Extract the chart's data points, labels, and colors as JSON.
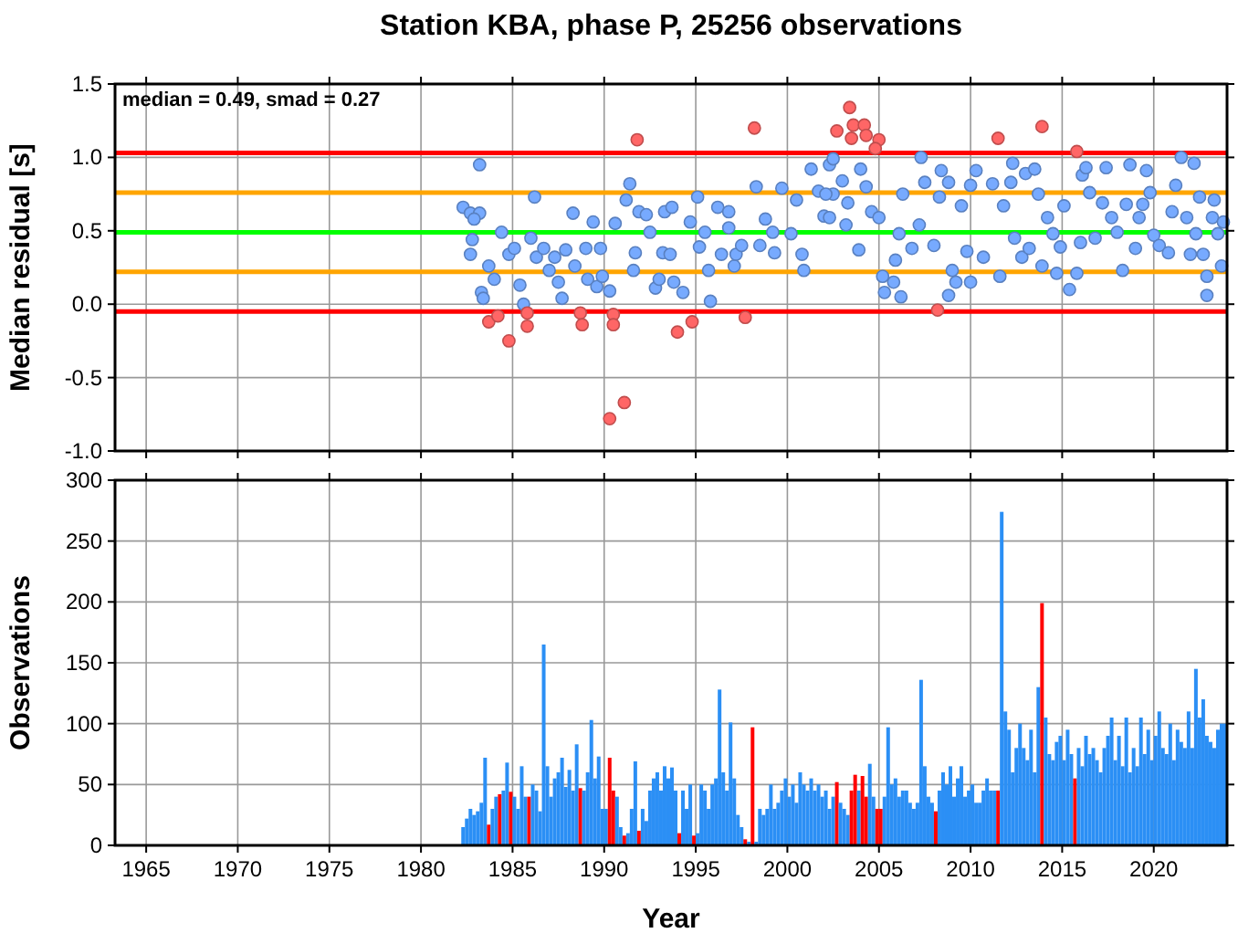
{
  "chart_data": [
    {
      "type": "scatter",
      "title": "Station KBA, phase P, 25256 observations",
      "ylabel": "Median residual [s]",
      "xlim": [
        1963.3,
        2024
      ],
      "xticks": [
        1965,
        1970,
        1975,
        1980,
        1985,
        1990,
        1995,
        2000,
        2005,
        2010,
        2015,
        2020
      ],
      "ylim": [
        -1,
        1.5
      ],
      "yticks": [
        {
          "value": -1,
          "label": "-1.0"
        },
        {
          "value": -0.5,
          "label": "-0.5"
        },
        {
          "value": 0,
          "label": "0.0"
        },
        {
          "value": 0.5,
          "label": "0.5"
        },
        {
          "value": 1,
          "label": "1.0"
        },
        {
          "value": 1.5,
          "label": "1.5"
        }
      ],
      "grid": true,
      "tick_labels": "y",
      "marker": "circle",
      "annotations": [
        "median = 0.49, smad = 0.27"
      ],
      "ref_lines": [
        {
          "axis": "y",
          "value": 1.03,
          "color": "#ff0000"
        },
        {
          "axis": "y",
          "value": 0.76,
          "color": "#ffa500"
        },
        {
          "axis": "y",
          "value": 0.49,
          "color": "#00ff00"
        },
        {
          "axis": "y",
          "value": 0.22,
          "color": "#ffa500"
        },
        {
          "axis": "y",
          "value": -0.05,
          "color": "#ff0000"
        }
      ],
      "series": [
        {
          "color": "#77aaff",
          "x": [
            1983.2,
            1982.3,
            1982.7,
            1983.2,
            1982.9,
            1982.8,
            1982.7,
            1983.3,
            1983.4,
            1983.7,
            1984.0,
            1984.4,
            1984.8,
            1985.1,
            1985.4,
            1985.6,
            1986.0,
            1986.2,
            1986.3,
            1986.7,
            1987.0,
            1987.3,
            1987.5,
            1987.7,
            1987.9,
            1988.3,
            1988.4,
            1989.0,
            1989.1,
            1989.4,
            1989.6,
            1989.8,
            1989.9,
            1990.3,
            1990.6,
            1991.2,
            1991.4,
            1991.6,
            1991.7,
            1991.9,
            1992.3,
            1992.5,
            1992.8,
            1993.0,
            1993.2,
            1993.3,
            1993.7,
            1993.6,
            1993.8,
            1994.3,
            1994.7,
            1995.1,
            1995.2,
            1995.5,
            1995.7,
            1995.8,
            1996.2,
            1996.4,
            1996.8,
            1996.8,
            1997.1,
            1997.2,
            1997.5,
            1998.3,
            1998.5,
            1998.8,
            1999.2,
            1999.3,
            1999.7,
            2000.2,
            2000.8,
            2000.9,
            2000.5,
            2001.3,
            2001.7,
            2002.0,
            2002.3,
            2002.5,
            2002.5,
            2002.1,
            2002.3,
            2003.0,
            2003.3,
            2003.2,
            2003.9,
            2004.0,
            2004.3,
            2004.6,
            2005.0,
            2005.2,
            2005.3,
            2005.8,
            2005.9,
            2006.2,
            2006.3,
            2006.1,
            2006.8,
            2007.2,
            2007.3,
            2007.5,
            2008.0,
            2008.3,
            2008.4,
            2008.8,
            2008.8,
            2009.0,
            2009.2,
            2009.5,
            2009.8,
            2010.0,
            2010.0,
            2010.3,
            2010.7,
            2011.2,
            2011.6,
            2011.8,
            2012.3,
            2012.2,
            2012.4,
            2012.8,
            2013.2,
            2013.0,
            2013.5,
            2013.7,
            2013.9,
            2014.2,
            2014.5,
            2014.7,
            2014.9,
            2015.1,
            2015.4,
            2015.8,
            2016.0,
            2016.1,
            2016.3,
            2016.5,
            2016.8,
            2017.2,
            2017.4,
            2017.7,
            2018.0,
            2018.3,
            2018.5,
            2018.7,
            2019.0,
            2019.2,
            2019.4,
            2019.6,
            2019.8,
            2020.0,
            2020.3,
            2020.8,
            2021.0,
            2021.2,
            2021.5,
            2021.8,
            2022.0,
            2022.2,
            2022.3,
            2022.5,
            2022.7,
            2022.9,
            2022.9,
            2023.2,
            2023.3,
            2023.5,
            2023.7,
            2023.8
          ],
          "values": [
            0.95,
            0.66,
            0.62,
            0.62,
            0.58,
            0.44,
            0.34,
            0.08,
            0.04,
            0.26,
            0.17,
            0.49,
            0.34,
            0.38,
            0.13,
            0.0,
            0.45,
            0.73,
            0.32,
            0.38,
            0.23,
            0.32,
            0.15,
            0.04,
            0.37,
            0.62,
            0.26,
            0.38,
            0.17,
            0.56,
            0.12,
            0.38,
            0.19,
            0.09,
            0.55,
            0.71,
            0.82,
            0.23,
            0.35,
            0.63,
            0.61,
            0.49,
            0.11,
            0.17,
            0.35,
            0.63,
            0.66,
            0.34,
            0.15,
            0.08,
            0.56,
            0.73,
            0.39,
            0.49,
            0.23,
            0.02,
            0.66,
            0.34,
            0.63,
            0.52,
            0.26,
            0.34,
            0.4,
            0.8,
            0.4,
            0.58,
            0.49,
            0.35,
            0.79,
            0.48,
            0.34,
            0.23,
            0.71,
            0.92,
            0.77,
            0.6,
            0.95,
            0.75,
            0.99,
            0.75,
            0.59,
            0.84,
            0.69,
            0.54,
            0.37,
            0.92,
            0.8,
            0.63,
            0.59,
            0.19,
            0.08,
            0.15,
            0.3,
            0.05,
            0.75,
            0.48,
            0.38,
            0.54,
            1.0,
            0.83,
            0.4,
            0.73,
            0.91,
            0.83,
            0.06,
            0.23,
            0.15,
            0.67,
            0.36,
            0.15,
            0.81,
            0.91,
            0.32,
            0.82,
            0.19,
            0.67,
            0.96,
            0.83,
            0.45,
            0.32,
            0.38,
            0.89,
            0.92,
            0.75,
            0.26,
            0.59,
            0.48,
            0.21,
            0.39,
            0.67,
            0.1,
            0.21,
            0.42,
            0.88,
            0.93,
            0.76,
            0.45,
            0.69,
            0.93,
            0.59,
            0.49,
            0.23,
            0.68,
            0.95,
            0.38,
            0.59,
            0.68,
            0.91,
            0.76,
            0.47,
            0.4,
            0.35,
            0.63,
            0.81,
            1.0,
            0.59,
            0.34,
            0.96,
            0.48,
            0.73,
            0.34,
            0.19,
            0.06,
            0.59,
            0.71,
            0.48,
            0.26,
            0.56
          ]
        },
        {
          "color": "#ff6666",
          "x": [
            1991.8,
            1998.2,
            2002.7,
            1983.7,
            1984.2,
            1984.8,
            1985.8,
            1985.8,
            1988.7,
            1988.8,
            1990.5,
            1990.5,
            1990.3,
            1991.1,
            1994.0,
            1994.8,
            1997.7,
            2003.4,
            2003.6,
            2004.2,
            2003.5,
            2004.3,
            2005.0,
            2004.8,
            2011.5,
            2013.9,
            2015.8,
            2008.2
          ],
          "values": [
            1.12,
            1.2,
            1.18,
            -0.12,
            -0.08,
            -0.25,
            -0.15,
            -0.06,
            -0.06,
            -0.14,
            -0.07,
            -0.14,
            -0.78,
            -0.67,
            -0.19,
            -0.12,
            -0.09,
            1.34,
            1.22,
            1.22,
            1.13,
            1.15,
            1.12,
            1.06,
            1.13,
            1.21,
            1.04,
            -0.04
          ]
        }
      ]
    },
    {
      "type": "bar",
      "xlabel": "Year",
      "ylabel": "Observations",
      "xlim": [
        1963.3,
        2024
      ],
      "xticks": [
        1965,
        1970,
        1975,
        1980,
        1985,
        1990,
        1995,
        2000,
        2005,
        2010,
        2015,
        2020
      ],
      "ylim": [
        0,
        300
      ],
      "yticks": [
        0,
        50,
        100,
        150,
        200,
        250,
        300
      ],
      "grid": true,
      "series": [
        {
          "x": [
            1982.3,
            1982.5,
            1982.7,
            1982.9,
            1983.1,
            1983.3,
            1983.5,
            1983.7,
            1983.9,
            1984.1,
            1984.3,
            1984.5,
            1984.7,
            1984.9,
            1985.1,
            1985.3,
            1985.5,
            1985.7,
            1985.9,
            1986.1,
            1986.3,
            1986.5,
            1986.7,
            1986.9,
            1987.1,
            1987.3,
            1987.5,
            1987.7,
            1987.9,
            1988.1,
            1988.3,
            1988.5,
            1988.7,
            1988.9,
            1989.1,
            1989.3,
            1989.5,
            1989.7,
            1989.9,
            1990.1,
            1990.3,
            1990.5,
            1990.7,
            1990.9,
            1991.1,
            1991.3,
            1991.5,
            1991.7,
            1991.9,
            1992.1,
            1992.3,
            1992.5,
            1992.7,
            1992.9,
            1993.1,
            1993.3,
            1993.5,
            1993.7,
            1993.9,
            1994.1,
            1994.3,
            1994.5,
            1994.7,
            1994.9,
            1995.1,
            1995.3,
            1995.5,
            1995.7,
            1995.9,
            1996.1,
            1996.3,
            1996.5,
            1996.7,
            1996.9,
            1997.1,
            1997.3,
            1997.5,
            1997.7,
            1997.9,
            1998.1,
            1998.3,
            1998.5,
            1998.7,
            1998.9,
            1999.1,
            1999.3,
            1999.5,
            1999.7,
            1999.9,
            2000.1,
            2000.3,
            2000.5,
            2000.7,
            2000.9,
            2001.1,
            2001.3,
            2001.5,
            2001.7,
            2001.9,
            2002.1,
            2002.3,
            2002.5,
            2002.7,
            2002.9,
            2003.1,
            2003.3,
            2003.5,
            2003.7,
            2003.9,
            2004.1,
            2004.3,
            2004.5,
            2004.7,
            2004.9,
            2005.1,
            2005.3,
            2005.5,
            2005.7,
            2005.9,
            2006.1,
            2006.3,
            2006.5,
            2006.7,
            2006.9,
            2007.1,
            2007.3,
            2007.5,
            2007.7,
            2007.9,
            2008.1,
            2008.3,
            2008.5,
            2008.7,
            2008.9,
            2009.1,
            2009.3,
            2009.5,
            2009.7,
            2009.9,
            2010.1,
            2010.3,
            2010.5,
            2010.7,
            2010.9,
            2011.1,
            2011.3,
            2011.5,
            2011.7,
            2011.9,
            2012.1,
            2012.3,
            2012.5,
            2012.7,
            2012.9,
            2013.1,
            2013.3,
            2013.5,
            2013.7,
            2013.9,
            2014.1,
            2014.3,
            2014.5,
            2014.7,
            2014.9,
            2015.1,
            2015.3,
            2015.5,
            2015.7,
            2015.9,
            2016.1,
            2016.3,
            2016.5,
            2016.7,
            2016.9,
            2017.1,
            2017.3,
            2017.5,
            2017.7,
            2017.9,
            2018.1,
            2018.3,
            2018.5,
            2018.7,
            2018.9,
            2019.1,
            2019.3,
            2019.5,
            2019.7,
            2019.9,
            2020.1,
            2020.3,
            2020.5,
            2020.7,
            2020.9,
            2021.1,
            2021.3,
            2021.5,
            2021.7,
            2021.9,
            2022.1,
            2022.3,
            2022.5,
            2022.7,
            2022.9,
            2023.1,
            2023.3,
            2023.5,
            2023.7,
            2023.9
          ],
          "values": [
            15,
            22,
            30,
            25,
            28,
            35,
            72,
            17,
            30,
            40,
            42,
            45,
            68,
            44,
            40,
            30,
            65,
            40,
            40,
            50,
            45,
            28,
            165,
            65,
            40,
            55,
            60,
            72,
            48,
            62,
            45,
            83,
            47,
            45,
            60,
            103,
            55,
            73,
            30,
            30,
            72,
            45,
            40,
            15,
            8,
            10,
            30,
            69,
            12,
            30,
            20,
            45,
            55,
            60,
            45,
            65,
            55,
            64,
            45,
            10,
            45,
            30,
            50,
            8,
            10,
            50,
            45,
            30,
            50,
            55,
            128,
            60,
            45,
            101,
            55,
            25,
            15,
            5,
            3,
            97,
            3,
            30,
            25,
            30,
            50,
            30,
            35,
            45,
            55,
            40,
            50,
            35,
            60,
            50,
            45,
            55,
            45,
            50,
            40,
            45,
            30,
            40,
            52,
            35,
            30,
            25,
            45,
            58,
            45,
            57,
            40,
            67,
            40,
            30,
            30,
            40,
            97,
            50,
            55,
            40,
            45,
            45,
            35,
            30,
            35,
            136,
            65,
            40,
            35,
            28,
            45,
            60,
            50,
            65,
            40,
            55,
            65,
            40,
            45,
            50,
            35,
            35,
            45,
            55,
            45,
            45,
            45,
            274,
            110,
            95,
            60,
            80,
            100,
            80,
            70,
            95,
            60,
            130,
            199,
            105,
            75,
            70,
            85,
            90,
            70,
            95,
            75,
            55,
            80,
            65,
            90,
            75,
            80,
            70,
            60,
            80,
            90,
            105,
            70,
            90,
            65,
            105,
            60,
            80,
            65,
            105,
            75,
            95,
            70,
            90,
            110,
            80,
            75,
            100,
            70,
            95,
            85,
            80,
            110,
            80,
            145,
            105,
            120,
            90,
            85,
            80,
            95,
            100,
            100
          ],
          "colors": [
            "#2b8ff5",
            "#2b8ff5",
            "#2b8ff5",
            "#2b8ff5",
            "#2b8ff5",
            "#2b8ff5",
            "#2b8ff5",
            "#ff0000",
            "#2b8ff5",
            "#2b8ff5",
            "#ff0000",
            "#2b8ff5",
            "#2b8ff5",
            "#ff0000",
            "#2b8ff5",
            "#2b8ff5",
            "#2b8ff5",
            "#2b8ff5",
            "#ff0000",
            "#2b8ff5",
            "#2b8ff5",
            "#2b8ff5",
            "#2b8ff5",
            "#2b8ff5",
            "#2b8ff5",
            "#2b8ff5",
            "#2b8ff5",
            "#2b8ff5",
            "#2b8ff5",
            "#2b8ff5",
            "#2b8ff5",
            "#2b8ff5",
            "#ff0000",
            "#2b8ff5",
            "#2b8ff5",
            "#2b8ff5",
            "#2b8ff5",
            "#2b8ff5",
            "#2b8ff5",
            "#2b8ff5",
            "#ff0000",
            "#ff0000",
            "#2b8ff5",
            "#2b8ff5",
            "#ff0000",
            "#2b8ff5",
            "#2b8ff5",
            "#2b8ff5",
            "#ff0000",
            "#2b8ff5",
            "#2b8ff5",
            "#2b8ff5",
            "#2b8ff5",
            "#2b8ff5",
            "#2b8ff5",
            "#2b8ff5",
            "#2b8ff5",
            "#2b8ff5",
            "#2b8ff5",
            "#ff0000",
            "#2b8ff5",
            "#2b8ff5",
            "#2b8ff5",
            "#ff0000",
            "#2b8ff5",
            "#2b8ff5",
            "#2b8ff5",
            "#2b8ff5",
            "#2b8ff5",
            "#2b8ff5",
            "#2b8ff5",
            "#2b8ff5",
            "#2b8ff5",
            "#2b8ff5",
            "#2b8ff5",
            "#2b8ff5",
            "#2b8ff5",
            "#ff0000",
            "#2b8ff5",
            "#ff0000",
            "#2b8ff5",
            "#2b8ff5",
            "#2b8ff5",
            "#2b8ff5",
            "#2b8ff5",
            "#2b8ff5",
            "#2b8ff5",
            "#2b8ff5",
            "#2b8ff5",
            "#2b8ff5",
            "#2b8ff5",
            "#2b8ff5",
            "#2b8ff5",
            "#2b8ff5",
            "#2b8ff5",
            "#2b8ff5",
            "#2b8ff5",
            "#2b8ff5",
            "#2b8ff5",
            "#2b8ff5",
            "#2b8ff5",
            "#2b8ff5",
            "#ff0000",
            "#2b8ff5",
            "#2b8ff5",
            "#2b8ff5",
            "#ff0000",
            "#ff0000",
            "#2b8ff5",
            "#ff0000",
            "#ff0000",
            "#2b8ff5",
            "#2b8ff5",
            "#ff0000",
            "#ff0000",
            "#2b8ff5",
            "#2b8ff5",
            "#2b8ff5",
            "#2b8ff5",
            "#2b8ff5",
            "#2b8ff5",
            "#2b8ff5",
            "#2b8ff5",
            "#2b8ff5",
            "#2b8ff5",
            "#2b8ff5",
            "#2b8ff5",
            "#2b8ff5",
            "#2b8ff5",
            "#ff0000",
            "#2b8ff5",
            "#2b8ff5",
            "#2b8ff5",
            "#2b8ff5",
            "#2b8ff5",
            "#2b8ff5",
            "#2b8ff5",
            "#2b8ff5",
            "#2b8ff5",
            "#2b8ff5",
            "#2b8ff5",
            "#2b8ff5",
            "#2b8ff5",
            "#2b8ff5",
            "#2b8ff5",
            "#2b8ff5",
            "#ff0000",
            "#2b8ff5",
            "#2b8ff5",
            "#2b8ff5",
            "#2b8ff5",
            "#2b8ff5",
            "#2b8ff5",
            "#2b8ff5",
            "#2b8ff5",
            "#2b8ff5",
            "#2b8ff5",
            "#2b8ff5",
            "#ff0000",
            "#2b8ff5",
            "#2b8ff5",
            "#2b8ff5",
            "#2b8ff5",
            "#2b8ff5",
            "#2b8ff5",
            "#2b8ff5",
            "#2b8ff5",
            "#ff0000",
            "#2b8ff5",
            "#2b8ff5",
            "#2b8ff5",
            "#2b8ff5",
            "#2b8ff5",
            "#2b8ff5",
            "#2b8ff5",
            "#2b8ff5",
            "#2b8ff5",
            "#2b8ff5",
            "#2b8ff5",
            "#2b8ff5",
            "#2b8ff5",
            "#2b8ff5",
            "#2b8ff5",
            "#2b8ff5",
            "#2b8ff5",
            "#2b8ff5",
            "#2b8ff5",
            "#2b8ff5",
            "#2b8ff5",
            "#2b8ff5",
            "#2b8ff5",
            "#2b8ff5",
            "#2b8ff5",
            "#2b8ff5",
            "#2b8ff5",
            "#2b8ff5",
            "#2b8ff5",
            "#2b8ff5",
            "#2b8ff5",
            "#2b8ff5",
            "#2b8ff5",
            "#2b8ff5",
            "#2b8ff5",
            "#2b8ff5",
            "#2b8ff5",
            "#2b8ff5",
            "#2b8ff5",
            "#2b8ff5",
            "#2b8ff5"
          ]
        }
      ]
    }
  ]
}
